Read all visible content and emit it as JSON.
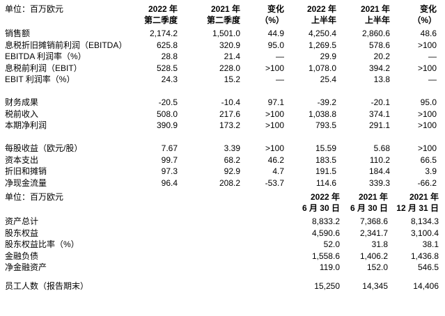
{
  "report": {
    "quarter_table": {
      "unit_label": "单位：百万欧元",
      "col_headers": [
        {
          "line1": "2022 年",
          "line2": "第二季度"
        },
        {
          "line1": "2021 年",
          "line2": "第二季度"
        },
        {
          "line1": "变化",
          "line2": "（%）"
        },
        {
          "line1": "2022 年",
          "line2": "上半年"
        },
        {
          "line1": "2021 年",
          "line2": "上半年"
        },
        {
          "line1": "变化",
          "line2": "（%）"
        }
      ],
      "rows": [
        {
          "label": "销售额",
          "values": [
            "2,174.2",
            "1,501.0",
            "44.9",
            "4,250.4",
            "2,860.6",
            "48.6"
          ]
        },
        {
          "label": "息税折旧摊销前利润（EBITDA）",
          "values": [
            "625.8",
            "320.9",
            "95.0",
            "1,269.5",
            "578.6",
            ">100"
          ]
        },
        {
          "label": "EBITDA 利润率（%）",
          "values": [
            "28.8",
            "21.4",
            "—",
            "29.9",
            "20.2",
            "—"
          ]
        },
        {
          "label": "息税前利润（EBIT）",
          "values": [
            "528.5",
            "228.0",
            ">100",
            "1,078.0",
            "394.2",
            ">100"
          ]
        },
        {
          "label": "EBIT 利润率（%）",
          "values": [
            "24.3",
            "15.2",
            "—",
            "25.4",
            "13.8",
            "—"
          ]
        },
        {
          "spacer": true
        },
        {
          "label": "财务成果",
          "values": [
            "-20.5",
            "-10.4",
            "97.1",
            "-39.2",
            "-20.1",
            "95.0"
          ]
        },
        {
          "label": "税前收入",
          "values": [
            "508.0",
            "217.6",
            ">100",
            "1,038.8",
            "374.1",
            ">100"
          ]
        },
        {
          "label": "本期净利润",
          "values": [
            "390.9",
            "173.2",
            ">100",
            "793.5",
            "291.1",
            ">100"
          ]
        },
        {
          "spacer": true
        },
        {
          "label": "每股收益（欧元/股）",
          "values": [
            "7.67",
            "3.39",
            ">100",
            "15.59",
            "5.68",
            ">100"
          ]
        },
        {
          "label": "资本支出",
          "values": [
            "99.7",
            "68.2",
            "46.2",
            "183.5",
            "110.2",
            "66.5"
          ]
        },
        {
          "label": "折旧和摊销",
          "values": [
            "97.3",
            "92.9",
            "4.7",
            "191.5",
            "184.4",
            "3.9"
          ]
        },
        {
          "label": "净现金流量",
          "values": [
            "96.4",
            "208.2",
            "-53.7",
            "114.6",
            "339.3",
            "-66.2"
          ]
        }
      ]
    },
    "balance_table": {
      "unit_label": "单位：百万欧元",
      "col_headers": [
        {
          "line1": "2022 年",
          "line2": "6 月 30 日"
        },
        {
          "line1": "2021 年",
          "line2": "6 月 30 日"
        },
        {
          "line1": "2021 年",
          "line2": "12 月 31 日"
        }
      ],
      "rows": [
        {
          "label": "资产总计",
          "values": [
            "8,833.2",
            "7,368.6",
            "8,134.3"
          ]
        },
        {
          "label": "股东权益",
          "values": [
            "4,590.6",
            "2,341.7",
            "3,100.4"
          ]
        },
        {
          "label": "股东权益比率（%）",
          "values": [
            "52.0",
            "31.8",
            "38.1"
          ]
        },
        {
          "label": "金融负债",
          "values": [
            "1,558.6",
            "1,406.2",
            "1,436.8"
          ]
        },
        {
          "label": "净金融资产",
          "values": [
            "119.0",
            "152.0",
            "546.5"
          ]
        },
        {
          "spacer": true,
          "small": true
        },
        {
          "label": "员工人数（报告期末）",
          "values": [
            "15,250",
            "14,345",
            "14,406"
          ]
        }
      ]
    }
  }
}
